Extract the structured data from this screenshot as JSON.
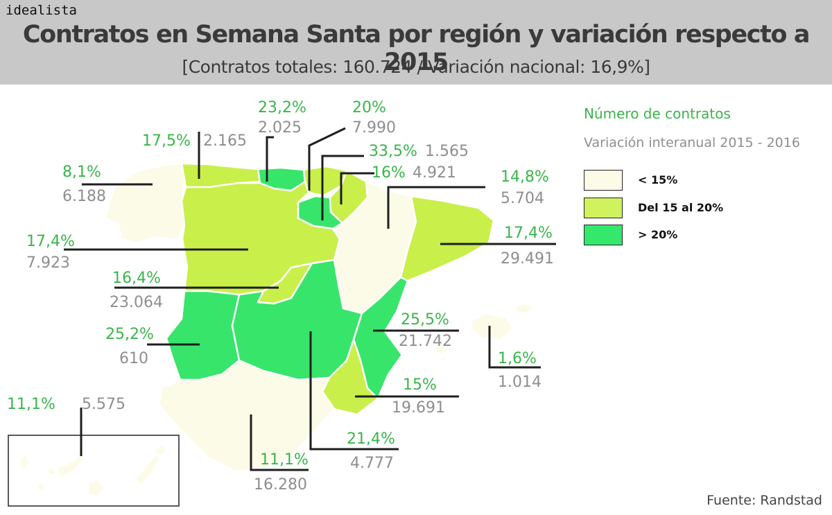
{
  "brand": "idealista",
  "title": "Contratos en Semana Santa por región y variación respecto a 2015",
  "subtitle": "[Contratos totales: 160.724 / Variación nacional: 16,9%]",
  "legend": {
    "title": "Número de contratos",
    "subtitle": "Variación interanual 2015 - 2016",
    "items": [
      {
        "label": "< 15%",
        "color": "#fbfbe8"
      },
      {
        "label": "Del 15 al 20%",
        "color": "#cff25e"
      },
      {
        "label": "> 20%",
        "color": "#34e86c"
      }
    ]
  },
  "colors": {
    "low": "#fbfbe8",
    "mid": "#c9ef4a",
    "high": "#38e56b",
    "percent_text": "#39b54a",
    "count_text": "#8e8e8e"
  },
  "regions": [
    {
      "key": "galicia",
      "variation": "8,1%",
      "contracts": "6.188",
      "class": "low"
    },
    {
      "key": "asturias",
      "variation": "17,5%",
      "contracts": "2.165",
      "class": "mid"
    },
    {
      "key": "cantabria",
      "variation": "23,2%",
      "contracts": "2.025",
      "class": "high"
    },
    {
      "key": "pais_vasco",
      "variation": "20%",
      "contracts": "7.990",
      "class": "mid"
    },
    {
      "key": "la_rioja",
      "variation": "33,5%",
      "contracts": "1.565",
      "class": "high"
    },
    {
      "key": "navarra",
      "variation": "16%",
      "contracts": "4.921",
      "class": "mid"
    },
    {
      "key": "aragon",
      "variation": "14,8%",
      "contracts": "5.704",
      "class": "low"
    },
    {
      "key": "cataluna",
      "variation": "17,4%",
      "contracts": "29.491",
      "class": "mid"
    },
    {
      "key": "castilla_leon",
      "variation": "17,4%",
      "contracts": "7.923",
      "class": "mid"
    },
    {
      "key": "madrid",
      "variation": "16,4%",
      "contracts": "23.064",
      "class": "mid"
    },
    {
      "key": "extremadura",
      "variation": "25,2%",
      "contracts": "610",
      "class": "high"
    },
    {
      "key": "valencia",
      "variation": "25,5%",
      "contracts": "21.742",
      "class": "high"
    },
    {
      "key": "baleares",
      "variation": "1,6%",
      "contracts": "1.014",
      "class": "low"
    },
    {
      "key": "murcia",
      "variation": "15%",
      "contracts": "19.691",
      "class": "mid"
    },
    {
      "key": "castilla_la_mancha",
      "variation": "21,4%",
      "contracts": "4.777",
      "class": "high"
    },
    {
      "key": "andalucia",
      "variation": "11,1%",
      "contracts": "16.280",
      "class": "low"
    },
    {
      "key": "canarias",
      "variation": "11,1%",
      "contracts": "5.575",
      "class": "low"
    }
  ],
  "source": "Fuente: Randstad"
}
